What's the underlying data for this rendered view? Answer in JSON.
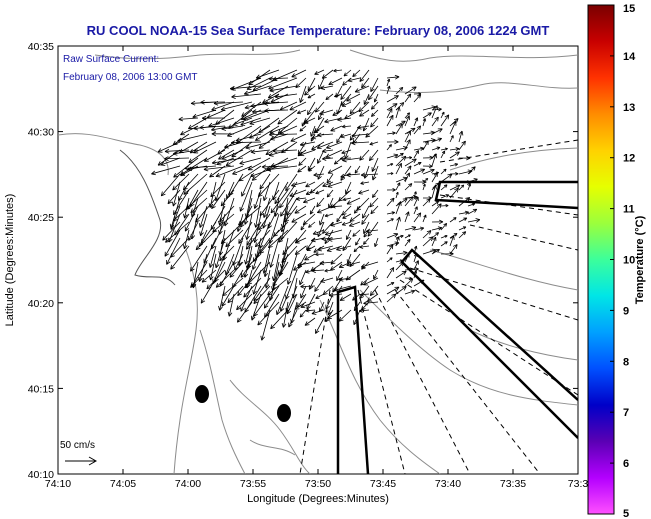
{
  "title": "RU COOL  NOAA-15  Sea Surface Temperature:  February 08, 2006 1224 GMT",
  "legend": {
    "line1": "Raw Surface Current:",
    "line2": "February 08, 2006 13:00 GMT"
  },
  "axes": {
    "xlabel": "Longitude (Degrees:Minutes)",
    "ylabel": "Latitude (Degrees:Minutes)",
    "x_ticks": [
      "74:10",
      "74:05",
      "74:00",
      "73:55",
      "73:50",
      "73:45",
      "73:40",
      "73:35",
      "73:3"
    ],
    "y_ticks": [
      "40:35",
      "40:30",
      "40:25",
      "40:20",
      "40:15",
      "40:10"
    ]
  },
  "scale_arrow_label": "50 cm/s",
  "colorbar": {
    "label": "Temperature (°C)",
    "ticks": [
      "15",
      "14",
      "13",
      "12",
      "11",
      "10",
      "9",
      "8",
      "7",
      "6",
      "5"
    ],
    "colors": [
      "#7a0000",
      "#c80000",
      "#ff3200",
      "#ff8c00",
      "#ffd200",
      "#e6ff00",
      "#9bff3c",
      "#3cff9b",
      "#00e6e6",
      "#00a0ff",
      "#0050ff",
      "#0000c8",
      "#5a00b4",
      "#b400ff",
      "#ff50ff"
    ]
  },
  "colors": {
    "title_text": "#1a1aa6",
    "contour": "#8c8c8c",
    "vectors": "#000000"
  }
}
